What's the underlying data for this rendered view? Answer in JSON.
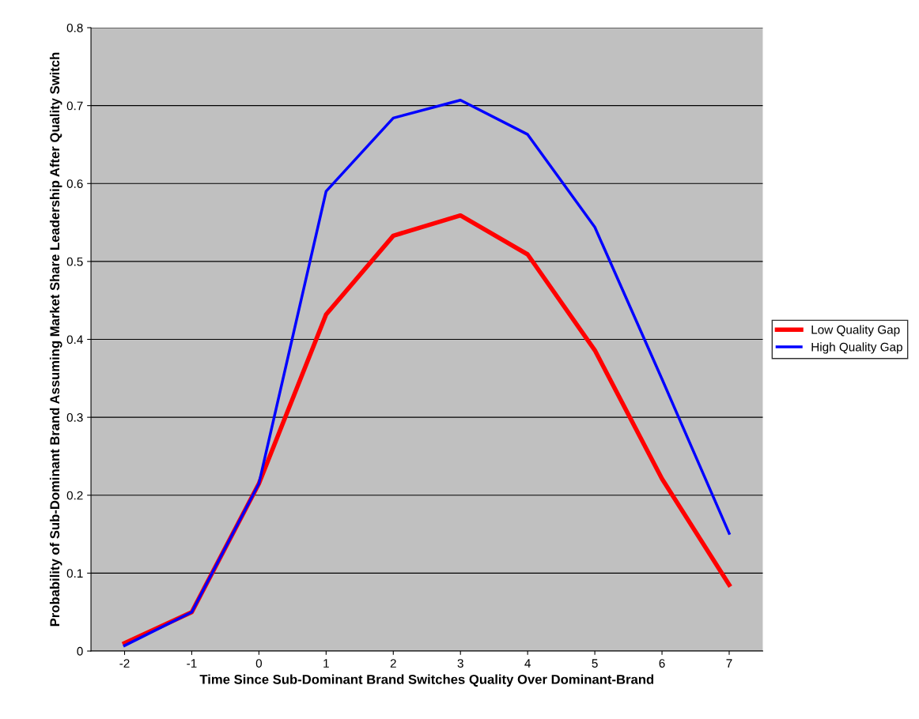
{
  "chart_data": {
    "type": "line",
    "xlabel": "Time Since Sub-Dominant Brand Switches Quality Over Dominant-Brand",
    "ylabel": "Probability of Sub-Dominant Brand Assuming Market Share Leadership After Quality Switch",
    "categories": [
      "-2",
      "-1",
      "0",
      "1",
      "2",
      "3",
      "4",
      "5",
      "6",
      "7"
    ],
    "series": [
      {
        "name": "Low Quality Gap",
        "color": "#ff0000",
        "values": [
          0.01,
          0.05,
          0.215,
          0.432,
          0.533,
          0.559,
          0.509,
          0.386,
          0.221,
          0.085
        ]
      },
      {
        "name": "High Quality Gap",
        "color": "#0000ff",
        "values": [
          0.007,
          0.05,
          0.215,
          0.59,
          0.684,
          0.707,
          0.663,
          0.544,
          0.349,
          0.151
        ]
      }
    ],
    "ylim": [
      0,
      0.8
    ],
    "yticks": [
      0,
      0.1,
      0.2,
      0.3,
      0.4,
      0.5,
      0.6,
      0.7,
      0.8
    ],
    "grid": "y",
    "legend": "right",
    "marker": "none",
    "line_style": "solid"
  }
}
